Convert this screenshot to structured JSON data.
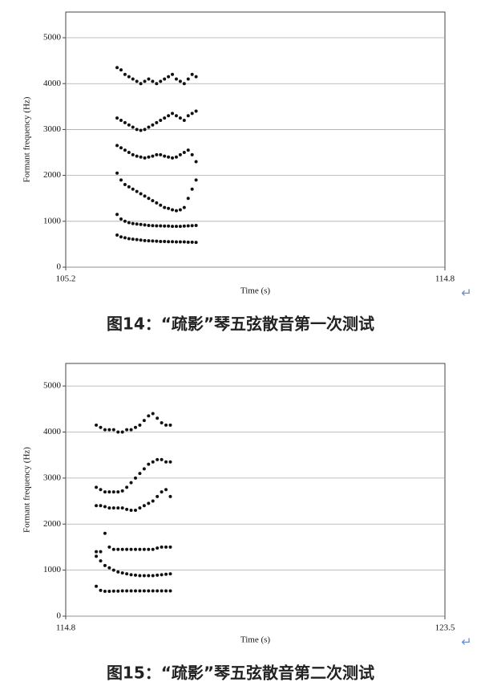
{
  "chart_data": [
    {
      "type": "scatter",
      "xlabel": "Time (s)",
      "ylabel": "Formant frequency (Hz)",
      "xlim": [
        105.2,
        114.8
      ],
      "xticks": [
        105.2,
        114.8
      ],
      "ylim": [
        0,
        5560
      ],
      "yticks": [
        0,
        1000,
        2000,
        3000,
        4000,
        5000
      ],
      "grid": true,
      "x": [
        106.5,
        106.6,
        106.7,
        106.8,
        106.9,
        107.0,
        107.1,
        107.2,
        107.3,
        107.4,
        107.5,
        107.6,
        107.7,
        107.8,
        107.9,
        108.0,
        108.1,
        108.2,
        108.3,
        108.4,
        108.5
      ],
      "series": [
        {
          "color": "#111111",
          "values": [
            700,
            660,
            640,
            620,
            610,
            600,
            590,
            580,
            575,
            570,
            565,
            560,
            560,
            555,
            555,
            550,
            550,
            550,
            545,
            545,
            540
          ]
        },
        {
          "color": "#111111",
          "values": [
            1150,
            1050,
            1000,
            970,
            950,
            940,
            930,
            920,
            910,
            905,
            900,
            900,
            895,
            895,
            890,
            890,
            890,
            895,
            900,
            905,
            910
          ]
        },
        {
          "color": "#111111",
          "values": [
            2050,
            1900,
            1800,
            1750,
            1700,
            1650,
            1600,
            1550,
            1500,
            1450,
            1400,
            1350,
            1300,
            1280,
            1250,
            1230,
            1250,
            1300,
            1500,
            1700,
            1900
          ]
        },
        {
          "color": "#111111",
          "values": [
            2650,
            2600,
            2550,
            2500,
            2450,
            2420,
            2400,
            2380,
            2400,
            2420,
            2450,
            2450,
            2420,
            2400,
            2380,
            2400,
            2450,
            2500,
            2550,
            2450,
            2300
          ]
        },
        {
          "color": "#111111",
          "values": [
            3250,
            3200,
            3150,
            3100,
            3050,
            3000,
            2980,
            3000,
            3050,
            3100,
            3150,
            3200,
            3250,
            3300,
            3350,
            3300,
            3250,
            3200,
            3300,
            3350,
            3400
          ]
        },
        {
          "color": "#111111",
          "values": [
            4350,
            4300,
            4200,
            4150,
            4100,
            4050,
            4000,
            4050,
            4100,
            4050,
            4000,
            4050,
            4100,
            4150,
            4200,
            4100,
            4050,
            4000,
            4100,
            4200,
            4150
          ]
        }
      ],
      "caption": "图14：“疏影”琴五弦散音第一次测试",
      "return_mark": "↵"
    },
    {
      "type": "scatter",
      "xlabel": "Time (s)",
      "ylabel": "Formant frequency (Hz)",
      "xlim": [
        114.8,
        123.5
      ],
      "xticks": [
        114.8,
        123.5
      ],
      "ylim": [
        0,
        5490
      ],
      "yticks": [
        0,
        1000,
        2000,
        3000,
        4000,
        5000
      ],
      "grid": true,
      "x": [
        115.5,
        115.6,
        115.7,
        115.8,
        115.9,
        116.0,
        116.1,
        116.2,
        116.3,
        116.4,
        116.5,
        116.6,
        116.7,
        116.8,
        116.9,
        117.0,
        117.1,
        117.2
      ],
      "series": [
        {
          "color": "#111111",
          "values": [
            650,
            560,
            540,
            540,
            545,
            545,
            550,
            550,
            550,
            550,
            550,
            550,
            550,
            550,
            550,
            550,
            550,
            550
          ]
        },
        {
          "color": "#111111",
          "values": [
            1400,
            1200,
            1100,
            1050,
            1000,
            960,
            940,
            920,
            900,
            890,
            880,
            880,
            880,
            880,
            890,
            900,
            910,
            920
          ]
        },
        {
          "color": "#111111",
          "values": [
            1300,
            1400,
            1800,
            1500,
            1450,
            1450,
            1450,
            1450,
            1450,
            1450,
            1450,
            1450,
            1450,
            1450,
            1480,
            1500,
            1500,
            1500
          ]
        },
        {
          "color": "#111111",
          "values": [
            2400,
            2400,
            2380,
            2350,
            2350,
            2350,
            2350,
            2320,
            2300,
            2300,
            2350,
            2400,
            2450,
            2500,
            2600,
            2700,
            2750,
            2600
          ]
        },
        {
          "color": "#111111",
          "values": [
            2800,
            2750,
            2700,
            2700,
            2700,
            2700,
            2720,
            2800,
            2900,
            3000,
            3100,
            3200,
            3300,
            3350,
            3400,
            3400,
            3350,
            3350
          ]
        },
        {
          "color": "#111111",
          "values": [
            4150,
            4100,
            4050,
            4050,
            4050,
            4000,
            4000,
            4050,
            4050,
            4100,
            4150,
            4250,
            4350,
            4400,
            4300,
            4200,
            4150,
            4150
          ]
        }
      ],
      "caption": "图15：“疏影”琴五弦散音第二次测试",
      "return_mark": "↵"
    }
  ]
}
